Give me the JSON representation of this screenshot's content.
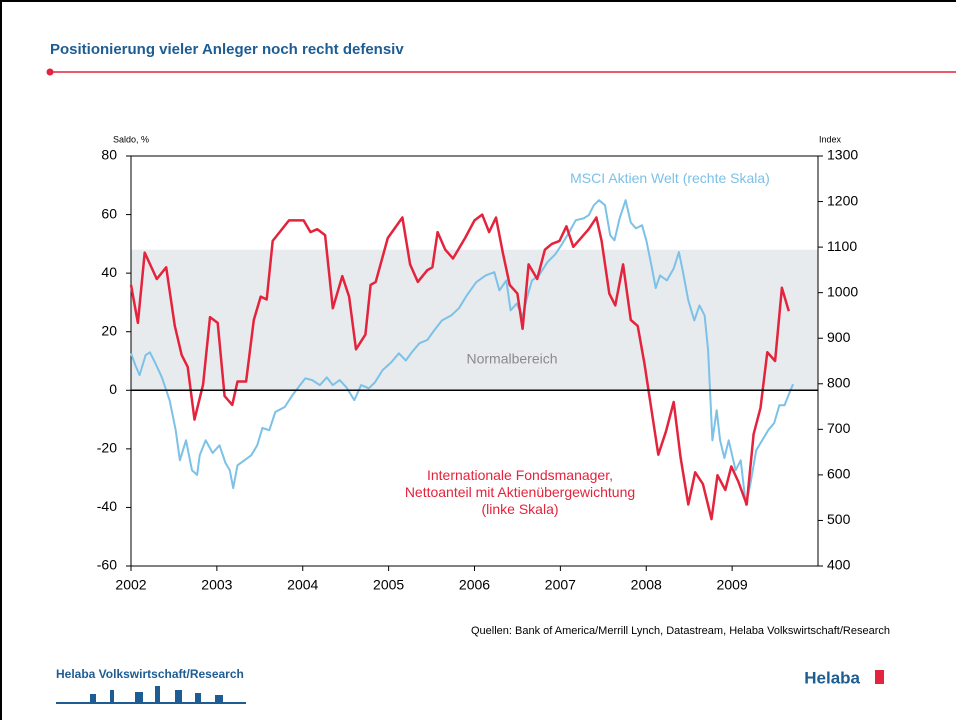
{
  "slide": {
    "title": "Positionierung vieler Anleger noch recht defensiv",
    "source": "Quellen: Bank of America/Merrill Lynch, Datastream, Helaba Volkswirtschaft/Research",
    "footer": "Helaba Volkswirtschaft/Research",
    "logo": "Helaba"
  },
  "chart_data": {
    "type": "line",
    "y_label": "Saldo, %",
    "y2_label": "Index",
    "xlim": [
      2002,
      2010
    ],
    "xticks": [
      2002,
      2003,
      2004,
      2005,
      2006,
      2007,
      2008,
      2009
    ],
    "ylim": [
      -60,
      80
    ],
    "yticks": [
      -60,
      -40,
      -20,
      0,
      20,
      40,
      60,
      80
    ],
    "y2lim": [
      400,
      1300
    ],
    "y2ticks": [
      400,
      500,
      600,
      700,
      800,
      900,
      1000,
      1100,
      1200,
      1300
    ],
    "band": {
      "range": [
        0,
        48
      ],
      "label": "Normalbereich",
      "color": "#e8ebee"
    },
    "series": [
      {
        "name": "MSCI Aktien Welt (rechte Skala)",
        "color": "#7cc1e8",
        "axis": "y2",
        "x": [
          2002.0,
          2002.05,
          2002.1,
          2002.17,
          2002.22,
          2002.28,
          2002.36,
          2002.45,
          2002.52,
          2002.57,
          2002.64,
          2002.71,
          2002.77,
          2002.8,
          2002.87,
          2002.95,
          2003.03,
          2003.1,
          2003.15,
          2003.19,
          2003.24,
          2003.32,
          2003.4,
          2003.47,
          2003.53,
          2003.61,
          2003.68,
          2003.79,
          2003.88,
          2003.96,
          2004.03,
          2004.11,
          2004.2,
          2004.28,
          2004.35,
          2004.43,
          2004.51,
          2004.6,
          2004.68,
          2004.77,
          2004.84,
          2004.93,
          2005.03,
          2005.12,
          2005.2,
          2005.27,
          2005.36,
          2005.45,
          2005.53,
          2005.62,
          2005.73,
          2005.82,
          2005.91,
          2006.02,
          2006.13,
          2006.23,
          2006.29,
          2006.37,
          2006.42,
          2006.49,
          2006.56,
          2006.61,
          2006.67,
          2006.75,
          2006.85,
          2006.94,
          2007.01,
          2007.1,
          2007.18,
          2007.27,
          2007.33,
          2007.39,
          2007.45,
          2007.52,
          2007.58,
          2007.63,
          2007.69,
          2007.76,
          2007.82,
          2007.88,
          2007.95,
          2008.0,
          2008.06,
          2008.11,
          2008.16,
          2008.24,
          2008.32,
          2008.38,
          2008.42,
          2008.49,
          2008.56,
          2008.62,
          2008.68,
          2008.72,
          2008.77,
          2008.82,
          2008.86,
          2008.91,
          2008.96,
          2009.04,
          2009.1,
          2009.16,
          2009.21,
          2009.28,
          2009.35,
          2009.42,
          2009.49,
          2009.55,
          2009.61,
          2009.68,
          2009.71
        ],
        "values": [
          867,
          841,
          819,
          863,
          869,
          847,
          814,
          764,
          698,
          632,
          676,
          610,
          600,
          643,
          676,
          648,
          665,
          626,
          610,
          571,
          621,
          632,
          643,
          665,
          703,
          698,
          738,
          749,
          775,
          795,
          812,
          808,
          797,
          814,
          797,
          808,
          792,
          764,
          797,
          790,
          803,
          830,
          847,
          867,
          851,
          869,
          889,
          896,
          917,
          939,
          950,
          966,
          994,
          1023,
          1038,
          1045,
          1005,
          1027,
          961,
          976,
          948,
          988,
          1027,
          1038,
          1067,
          1084,
          1104,
          1132,
          1159,
          1163,
          1170,
          1192,
          1203,
          1192,
          1126,
          1115,
          1163,
          1203,
          1154,
          1141,
          1148,
          1115,
          1060,
          1010,
          1038,
          1027,
          1053,
          1089,
          1053,
          983,
          939,
          972,
          950,
          874,
          676,
          742,
          676,
          637,
          676,
          610,
          632,
          534,
          578,
          654,
          676,
          698,
          714,
          753,
          753,
          786,
          799
        ]
      },
      {
        "name": "Internationale Fondsmanager,\nNettoanteil mit Aktienübergewichtung\n(linke Skala)",
        "color": "#e4233c",
        "axis": "y",
        "x": [
          2002.0,
          2002.08,
          2002.16,
          2002.3,
          2002.41,
          2002.51,
          2002.59,
          2002.66,
          2002.74,
          2002.84,
          2002.92,
          2003.01,
          2003.09,
          2003.18,
          2003.24,
          2003.34,
          2003.43,
          2003.51,
          2003.58,
          2003.65,
          2003.84,
          2004.01,
          2004.09,
          2004.17,
          2004.26,
          2004.35,
          2004.46,
          2004.54,
          2004.62,
          2004.73,
          2004.79,
          2004.85,
          2004.99,
          2005.16,
          2005.25,
          2005.34,
          2005.45,
          2005.51,
          2005.57,
          2005.66,
          2005.75,
          2005.89,
          2006.0,
          2006.09,
          2006.17,
          2006.25,
          2006.33,
          2006.41,
          2006.5,
          2006.56,
          2006.63,
          2006.73,
          2006.82,
          2006.9,
          2006.99,
          2007.07,
          2007.15,
          2007.33,
          2007.42,
          2007.48,
          2007.57,
          2007.64,
          2007.73,
          2007.82,
          2007.9,
          2007.98,
          2008.14,
          2008.23,
          2008.32,
          2008.4,
          2008.49,
          2008.57,
          2008.66,
          2008.76,
          2008.83,
          2008.92,
          2008.99,
          2009.07,
          2009.17,
          2009.25,
          2009.33,
          2009.41,
          2009.5,
          2009.58,
          2009.66
        ],
        "values": [
          36,
          23,
          47,
          38,
          42,
          22,
          12,
          8,
          -10,
          2,
          25,
          23,
          -2,
          -5,
          3,
          3,
          24,
          32,
          31,
          51,
          58,
          58,
          54,
          55,
          53,
          28,
          39,
          32,
          14,
          19,
          36,
          37,
          52,
          59,
          43,
          37,
          41,
          42,
          54,
          48,
          45,
          52,
          58,
          60,
          54,
          59,
          47,
          36,
          33,
          21,
          43,
          38,
          48,
          50,
          51,
          56,
          49,
          55,
          59,
          51,
          33,
          29,
          43,
          24,
          22,
          9,
          -22,
          -14,
          -4,
          -23,
          -39,
          -28,
          -32,
          -44,
          -29,
          -34,
          -26,
          -31,
          -39,
          -15,
          -6,
          13,
          10,
          35,
          27
        ]
      }
    ]
  }
}
